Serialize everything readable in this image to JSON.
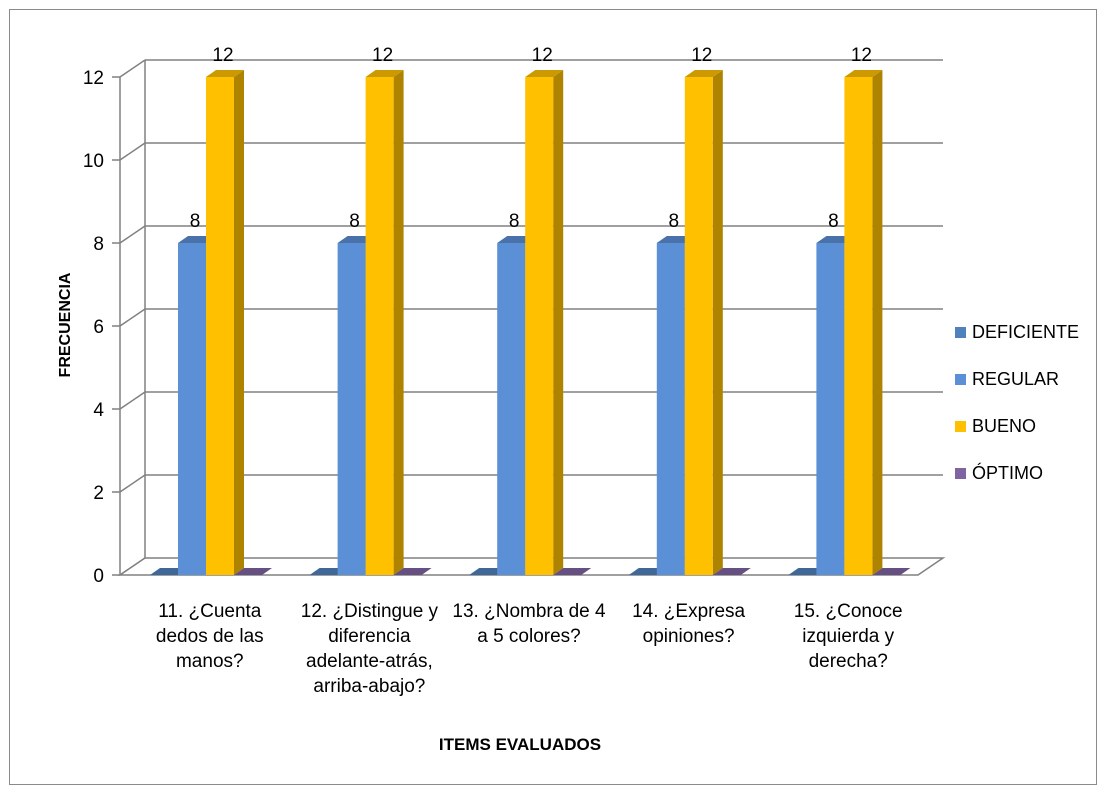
{
  "chart_data": {
    "type": "bar",
    "title": "",
    "xlabel": "ITEMS EVALUADOS",
    "ylabel": "FRECUENCIA",
    "ylim": [
      0,
      12
    ],
    "yticks": [
      0,
      2,
      4,
      6,
      8,
      10,
      12
    ],
    "grid": true,
    "legend_position": "right",
    "categories": [
      [
        "11. ¿Cuenta",
        "dedos de las",
        "manos?"
      ],
      [
        "12. ¿Distingue y",
        "diferencia",
        "adelante-atrás,",
        "arriba-abajo?"
      ],
      [
        "13. ¿Nombra de 4",
        "a 5 colores?"
      ],
      [
        "14. ¿Expresa",
        "opiniones?"
      ],
      [
        "15. ¿Conoce",
        "izquierda y",
        "derecha?"
      ]
    ],
    "series": [
      {
        "name": "DEFICIENTE",
        "color": "#4f81bd",
        "values": [
          0,
          0,
          0,
          0,
          0
        ]
      },
      {
        "name": "REGULAR",
        "color": "#5b8fd6",
        "values": [
          8,
          8,
          8,
          8,
          8
        ]
      },
      {
        "name": "BUENO",
        "color": "#ffc000",
        "values": [
          12,
          12,
          12,
          12,
          12
        ]
      },
      {
        "name": "ÓPTIMO",
        "color": "#8064a2",
        "values": [
          0,
          0,
          0,
          0,
          0
        ]
      }
    ],
    "data_labels": {
      "REGULAR": true,
      "BUENO": true
    }
  }
}
